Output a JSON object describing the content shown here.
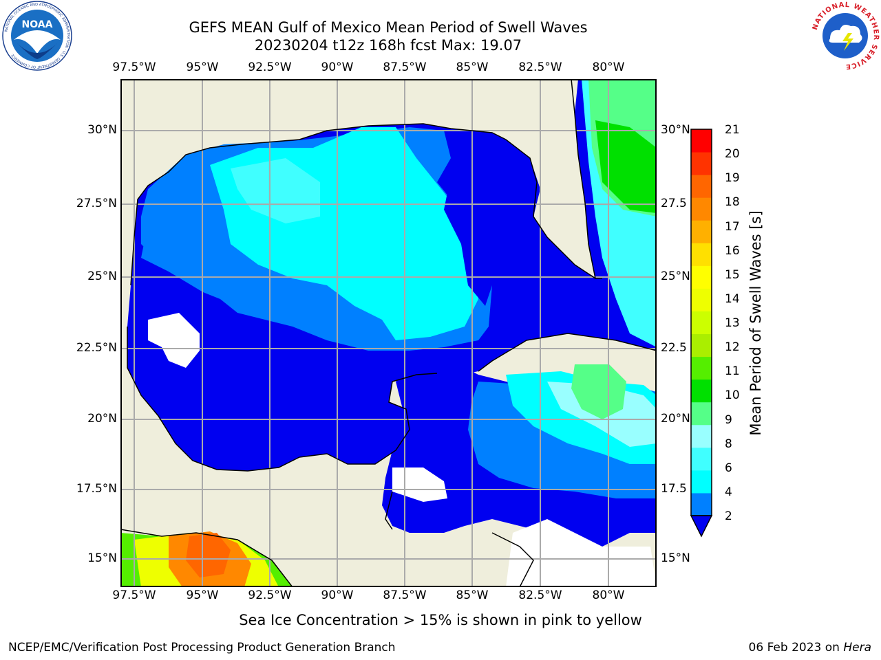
{
  "title": {
    "line1": "GEFS MEAN Gulf of Mexico Mean Period of Swell Waves",
    "line2": "20230204 t12z 168h fcst   Max: 19.07"
  },
  "map": {
    "lon_labels": [
      "97.5°W",
      "95°W",
      "92.5°W",
      "90°W",
      "87.5°W",
      "85°W",
      "82.5°W",
      "80°W"
    ],
    "lat_labels": [
      "30°N",
      "27.5°N",
      "25°N",
      "22.5°N",
      "20°N",
      "17.5°N",
      "15°N"
    ],
    "right_lat_labels": [
      "30°N",
      "27.5",
      "25°N",
      "22.5",
      "20°N",
      "17.5",
      "15°N"
    ]
  },
  "colorbar": {
    "title": "Mean Period of Swell Waves [s]",
    "ticks": [
      "21",
      "20",
      "19",
      "18",
      "17",
      "16",
      "15",
      "14",
      "13",
      "12",
      "11",
      "10",
      "9",
      "8",
      "6",
      "4",
      "2"
    ],
    "colors": [
      "#0000f0",
      "#0080ff",
      "#00ffff",
      "#40ffff",
      "#99ffff",
      "#55ff88",
      "#00e000",
      "#55ee00",
      "#aaee00",
      "#ccff00",
      "#eeff00",
      "#ffff00",
      "#ffe000",
      "#ffb000",
      "#ff8800",
      "#ff6600",
      "#ff3300",
      "#ff0000"
    ]
  },
  "note": "Sea Ice Concentration > 15% is shown in pink to yellow",
  "footer": {
    "credit": "NCEP/EMC/Verification Post Processing Product Generation Branch",
    "date": "06 Feb 2023 on ",
    "host": "Hera"
  },
  "logos": {
    "left": "NOAA",
    "left_ring": "NATIONAL OCEANIC AND ATMOSPHERIC ADMINISTRATION · U.S. DEPARTMENT OF COMMERCE",
    "right_ring": "NATIONAL WEATHER SERVICE"
  }
}
